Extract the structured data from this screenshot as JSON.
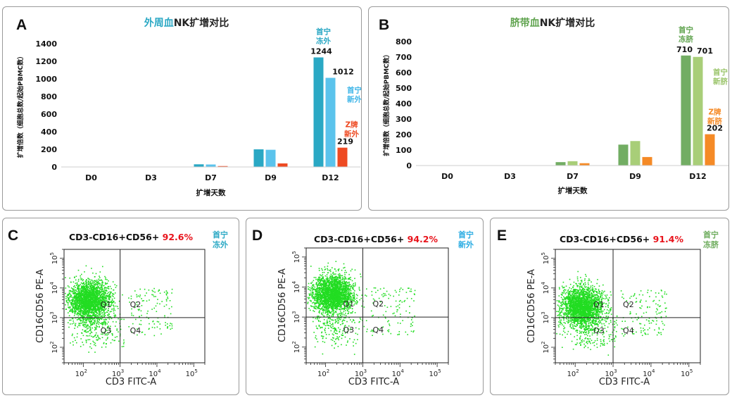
{
  "chart_data": [
    {
      "type": "bar",
      "panel_label": "A",
      "title_prefix": "外周血",
      "title_suffix": "NK扩增对比",
      "ylabel": "扩增倍数（细胞总数/起始PBMC数）",
      "xlabel": "扩增天数",
      "categories": [
        "D0",
        "D3",
        "D7",
        "D9",
        "D12"
      ],
      "ylim": [
        0,
        1400
      ],
      "yticks": [
        0,
        200,
        400,
        600,
        800,
        1000,
        1200,
        1400
      ],
      "series": [
        {
          "name": "首宁冻外",
          "color": "#2AA8C4",
          "values": [
            0,
            0,
            30,
            200,
            1244
          ]
        },
        {
          "name": "首宁新外",
          "color": "#5BC3EC",
          "values": [
            0,
            0,
            28,
            195,
            1012
          ]
        },
        {
          "name": "Z牌新外",
          "color": "#EE4A22",
          "values": [
            0,
            0,
            10,
            40,
            219
          ]
        }
      ],
      "data_labels": [
        "1244",
        "1012",
        "219"
      ],
      "annotations": [
        {
          "lines": [
            "首宁",
            "冻外"
          ],
          "color": "#2AA8C4"
        },
        {
          "lines": [
            "首宁",
            "新外"
          ],
          "color": "#40B6E8"
        },
        {
          "lines": [
            "Z牌",
            "新外"
          ],
          "color": "#EE4A22"
        }
      ]
    },
    {
      "type": "bar",
      "panel_label": "B",
      "title_prefix": "脐带血",
      "title_suffix": "NK扩增对比",
      "ylabel": "扩增倍数（细胞总数/起始PBMC数）",
      "xlabel": "扩增天数",
      "categories": [
        "D0",
        "D3",
        "D7",
        "D9",
        "D12"
      ],
      "ylim": [
        0,
        800
      ],
      "yticks": [
        0,
        100,
        200,
        300,
        400,
        500,
        600,
        700,
        800
      ],
      "series": [
        {
          "name": "首宁冻脐",
          "color": "#72AD63",
          "values": [
            0,
            0,
            22,
            135,
            710
          ]
        },
        {
          "name": "首宁新脐",
          "color": "#A8CE78",
          "values": [
            0,
            0,
            28,
            158,
            701
          ]
        },
        {
          "name": "Z牌新脐",
          "color": "#F58A26",
          "values": [
            0,
            0,
            15,
            55,
            202
          ]
        }
      ],
      "data_labels": [
        "710",
        "701",
        "202"
      ],
      "annotations": [
        {
          "lines": [
            "首宁",
            "冻脐"
          ],
          "color": "#5FA34E"
        },
        {
          "lines": [
            "首宁",
            "新脐"
          ],
          "color": "#9AC46A"
        },
        {
          "lines": [
            "Z牌",
            "新脐"
          ],
          "color": "#F58A26"
        }
      ]
    },
    {
      "type": "scatter",
      "panel_label": "C",
      "population": "CD3-CD16+CD56+",
      "percent": "92.6%",
      "sample_lines": [
        "首宁",
        "冻外"
      ],
      "sample_color": "#2AA8C4",
      "xlabel": "CD3 FITC-A",
      "ylabel": "CD16CD56 PE-A",
      "quadrants": [
        "Q1",
        "Q2",
        "Q3",
        "Q4"
      ],
      "xlim": [
        30,
        200000
      ],
      "ylim": [
        30,
        200000
      ],
      "gate_x": 1000,
      "gate_y": 1000,
      "cluster_center": [
        140,
        4000
      ],
      "quadrant_pct_q1": 92.6
    },
    {
      "type": "scatter",
      "panel_label": "D",
      "population": "CD3-CD16+CD56+",
      "percent": "94.2%",
      "sample_lines": [
        "首宁",
        "新外"
      ],
      "sample_color": "#29ABE2",
      "xlabel": "CD3 FITC-A",
      "ylabel": "CD16CD56 PE-A",
      "quadrants": [
        "Q1",
        "Q2",
        "Q3",
        "Q4"
      ],
      "xlim": [
        30,
        200000
      ],
      "ylim": [
        30,
        200000
      ],
      "gate_x": 1000,
      "gate_y": 1000,
      "cluster_center": [
        150,
        6000
      ],
      "quadrant_pct_q1": 94.2
    },
    {
      "type": "scatter",
      "panel_label": "E",
      "population": "CD3-CD16+CD56+",
      "percent": "91.4%",
      "sample_lines": [
        "首宁",
        "冻脐"
      ],
      "sample_color": "#6CAB5B",
      "xlabel": "CD3 FITC-A",
      "ylabel": "CD16CD56 PE-A",
      "quadrants": [
        "Q1",
        "Q2",
        "Q3",
        "Q4"
      ],
      "xlim": [
        30,
        200000
      ],
      "ylim": [
        30,
        200000
      ],
      "gate_x": 1000,
      "gate_y": 1000,
      "cluster_center": [
        150,
        2500
      ],
      "quadrant_pct_q1": 91.4
    }
  ],
  "colors": {
    "title_blue": "#2AA8C4",
    "title_green": "#5FA34E",
    "percent_red": "#E8131B",
    "dot_green": "#22DD22"
  }
}
